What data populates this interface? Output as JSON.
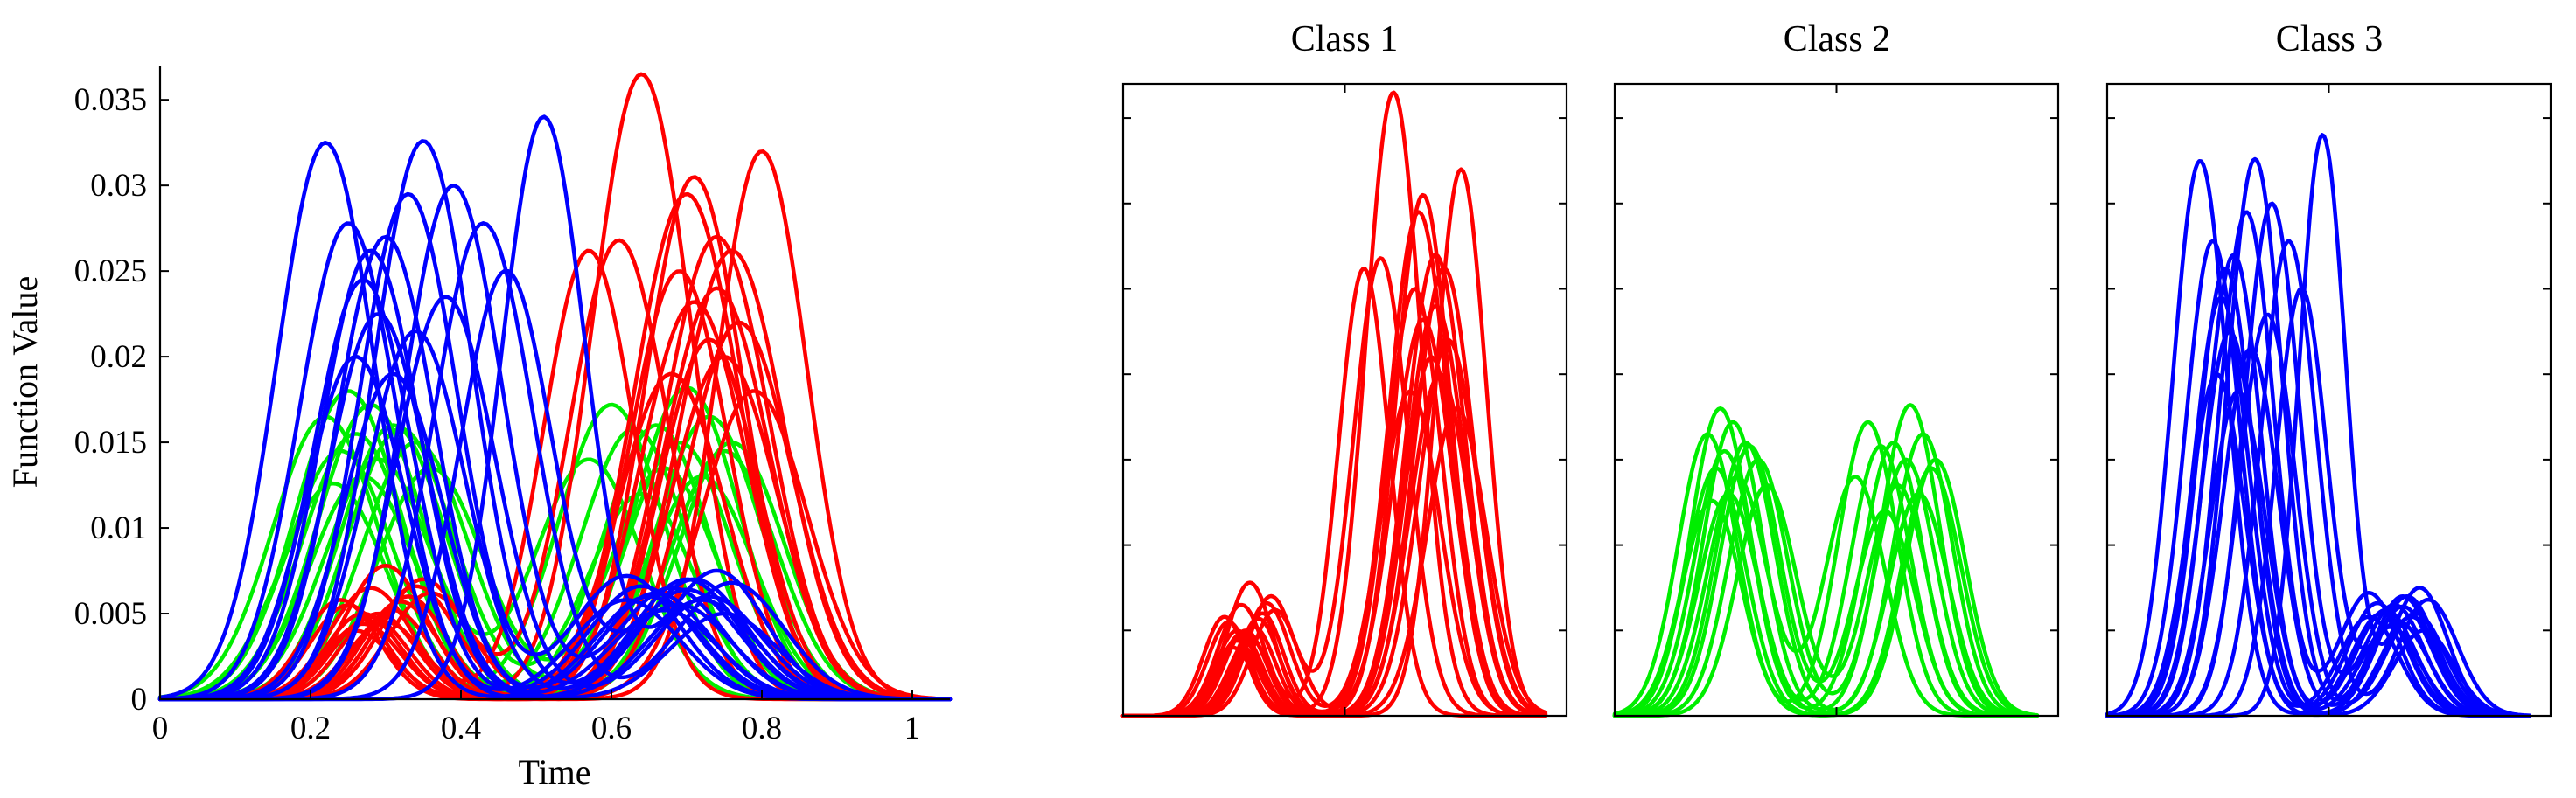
{
  "chart_data": [
    {
      "type": "line",
      "panel": "combined",
      "title": "",
      "xlabel": "Time",
      "ylabel": "Function Value",
      "xlim": [
        0,
        1.05
      ],
      "ylim": [
        0,
        0.037
      ],
      "x_ticks": [
        "0",
        "0.2",
        "0.4",
        "0.6",
        "0.8",
        "1"
      ],
      "x_tick_values": [
        0,
        0.2,
        0.4,
        0.6,
        0.8,
        1.0
      ],
      "y_ticks": [
        "0",
        "0.005",
        "0.01",
        "0.015",
        "0.02",
        "0.025",
        "0.03",
        "0.035"
      ],
      "y_tick_values": [
        0,
        0.005,
        0.01,
        0.015,
        0.02,
        0.025,
        0.03,
        0.035
      ],
      "grid": false,
      "legend": "none",
      "series_groups": [
        "Class 2",
        "Class 1",
        "Class 3"
      ]
    },
    {
      "type": "line",
      "panel": "class1",
      "title": "Class 1",
      "xlim": [
        0,
        1.05
      ],
      "ylim": [
        0,
        0.037
      ],
      "color": "#ff0000",
      "description_peaks": "small first bump near 0.3 (~0.004-0.008), tall second peak 0.55-0.8 (~0.018-0.037)",
      "series": [
        {
          "a1": 0.0065,
          "m1": 0.28,
          "s1": 0.055,
          "a2": 0.0365,
          "m2": 0.64,
          "s2": 0.065
        },
        {
          "a1": 0.0078,
          "m1": 0.3,
          "s1": 0.055,
          "a2": 0.032,
          "m2": 0.8,
          "s2": 0.06
        },
        {
          "a1": 0.0055,
          "m1": 0.25,
          "s1": 0.05,
          "a2": 0.0305,
          "m2": 0.71,
          "s2": 0.065
        },
        {
          "a1": 0.006,
          "m1": 0.33,
          "s1": 0.05,
          "a2": 0.0295,
          "m2": 0.7,
          "s2": 0.07
        },
        {
          "a1": 0.005,
          "m1": 0.27,
          "s1": 0.05,
          "a2": 0.027,
          "m2": 0.74,
          "s2": 0.07
        },
        {
          "a1": 0.007,
          "m1": 0.35,
          "s1": 0.055,
          "a2": 0.0268,
          "m2": 0.61,
          "s2": 0.065
        },
        {
          "a1": 0.0045,
          "m1": 0.3,
          "s1": 0.05,
          "a2": 0.0262,
          "m2": 0.57,
          "s2": 0.06
        },
        {
          "a1": 0.0058,
          "m1": 0.24,
          "s1": 0.05,
          "a2": 0.0262,
          "m2": 0.76,
          "s2": 0.07
        },
        {
          "a1": 0.0052,
          "m1": 0.31,
          "s1": 0.05,
          "a2": 0.025,
          "m2": 0.69,
          "s2": 0.065
        },
        {
          "a1": 0.0048,
          "m1": 0.28,
          "s1": 0.05,
          "a2": 0.024,
          "m2": 0.74,
          "s2": 0.07
        },
        {
          "a1": 0.0062,
          "m1": 0.36,
          "s1": 0.055,
          "a2": 0.0232,
          "m2": 0.71,
          "s2": 0.07
        },
        {
          "a1": 0.004,
          "m1": 0.26,
          "s1": 0.05,
          "a2": 0.022,
          "m2": 0.77,
          "s2": 0.07
        },
        {
          "a1": 0.0057,
          "m1": 0.32,
          "s1": 0.05,
          "a2": 0.021,
          "m2": 0.73,
          "s2": 0.065
        },
        {
          "a1": 0.005,
          "m1": 0.29,
          "s1": 0.05,
          "a2": 0.02,
          "m2": 0.75,
          "s2": 0.07
        },
        {
          "a1": 0.0066,
          "m1": 0.34,
          "s1": 0.055,
          "a2": 0.019,
          "m2": 0.68,
          "s2": 0.07
        },
        {
          "a1": 0.0044,
          "m1": 0.27,
          "s1": 0.05,
          "a2": 0.018,
          "m2": 0.79,
          "s2": 0.07
        }
      ]
    },
    {
      "type": "line",
      "panel": "class2",
      "title": "Class 2",
      "xlim": [
        0,
        1.05
      ],
      "ylim": [
        0,
        0.037
      ],
      "color": "#00ee00",
      "description_peaks": "two comparable bumps near 0.25-0.35 and 0.6-0.75 (~0.013-0.018)",
      "series": [
        {
          "a1": 0.018,
          "m1": 0.25,
          "s1": 0.07,
          "a2": 0.016,
          "m2": 0.66,
          "s2": 0.07
        },
        {
          "a1": 0.0172,
          "m1": 0.28,
          "s1": 0.07,
          "a2": 0.0182,
          "m2": 0.7,
          "s2": 0.07
        },
        {
          "a1": 0.0165,
          "m1": 0.22,
          "s1": 0.07,
          "a2": 0.0172,
          "m2": 0.6,
          "s2": 0.07
        },
        {
          "a1": 0.016,
          "m1": 0.31,
          "s1": 0.07,
          "a2": 0.0165,
          "m2": 0.73,
          "s2": 0.07
        },
        {
          "a1": 0.0155,
          "m1": 0.26,
          "s1": 0.07,
          "a2": 0.0158,
          "m2": 0.63,
          "s2": 0.07
        },
        {
          "a1": 0.015,
          "m1": 0.34,
          "s1": 0.07,
          "a2": 0.015,
          "m2": 0.69,
          "s2": 0.07
        },
        {
          "a1": 0.0145,
          "m1": 0.24,
          "s1": 0.07,
          "a2": 0.0145,
          "m2": 0.75,
          "s2": 0.07
        },
        {
          "a1": 0.014,
          "m1": 0.29,
          "s1": 0.07,
          "a2": 0.014,
          "m2": 0.57,
          "s2": 0.07
        },
        {
          "a1": 0.0135,
          "m1": 0.36,
          "s1": 0.07,
          "a2": 0.0135,
          "m2": 0.67,
          "s2": 0.07
        },
        {
          "a1": 0.013,
          "m1": 0.27,
          "s1": 0.07,
          "a2": 0.013,
          "m2": 0.72,
          "s2": 0.07
        },
        {
          "a1": 0.0158,
          "m1": 0.32,
          "s1": 0.07,
          "a2": 0.012,
          "m2": 0.64,
          "s2": 0.07
        },
        {
          "a1": 0.0126,
          "m1": 0.23,
          "s1": 0.07,
          "a2": 0.015,
          "m2": 0.76,
          "s2": 0.07
        }
      ]
    },
    {
      "type": "line",
      "panel": "class3",
      "title": "Class 3",
      "xlim": [
        0,
        1.05
      ],
      "ylim": [
        0,
        0.037
      ],
      "color": "#0000ff",
      "description_peaks": "tall first peak 0.2-0.5 (~0.018-0.034), small second bump near 0.7 (~0.004-0.008)",
      "series": [
        {
          "a1": 0.0325,
          "m1": 0.22,
          "s1": 0.065,
          "a2": 0.006,
          "m2": 0.65,
          "s2": 0.07
        },
        {
          "a1": 0.0326,
          "m1": 0.35,
          "s1": 0.065,
          "a2": 0.007,
          "m2": 0.7,
          "s2": 0.07
        },
        {
          "a1": 0.034,
          "m1": 0.51,
          "s1": 0.055,
          "a2": 0.0075,
          "m2": 0.74,
          "s2": 0.065
        },
        {
          "a1": 0.03,
          "m1": 0.39,
          "s1": 0.065,
          "a2": 0.0065,
          "m2": 0.68,
          "s2": 0.07
        },
        {
          "a1": 0.0295,
          "m1": 0.33,
          "s1": 0.065,
          "a2": 0.0072,
          "m2": 0.62,
          "s2": 0.07
        },
        {
          "a1": 0.0278,
          "m1": 0.25,
          "s1": 0.065,
          "a2": 0.0058,
          "m2": 0.72,
          "s2": 0.07
        },
        {
          "a1": 0.0278,
          "m1": 0.43,
          "s1": 0.065,
          "a2": 0.0068,
          "m2": 0.76,
          "s2": 0.07
        },
        {
          "a1": 0.027,
          "m1": 0.3,
          "s1": 0.065,
          "a2": 0.0062,
          "m2": 0.66,
          "s2": 0.07
        },
        {
          "a1": 0.0262,
          "m1": 0.28,
          "s1": 0.065,
          "a2": 0.007,
          "m2": 0.71,
          "s2": 0.07
        },
        {
          "a1": 0.025,
          "m1": 0.46,
          "s1": 0.06,
          "a2": 0.0055,
          "m2": 0.69,
          "s2": 0.07
        },
        {
          "a1": 0.0245,
          "m1": 0.27,
          "s1": 0.065,
          "a2": 0.0066,
          "m2": 0.64,
          "s2": 0.07
        },
        {
          "a1": 0.0235,
          "m1": 0.38,
          "s1": 0.065,
          "a2": 0.006,
          "m2": 0.73,
          "s2": 0.07
        },
        {
          "a1": 0.0225,
          "m1": 0.29,
          "s1": 0.065,
          "a2": 0.0052,
          "m2": 0.67,
          "s2": 0.07
        },
        {
          "a1": 0.0215,
          "m1": 0.34,
          "s1": 0.065,
          "a2": 0.0064,
          "m2": 0.7,
          "s2": 0.07
        },
        {
          "a1": 0.02,
          "m1": 0.26,
          "s1": 0.065,
          "a2": 0.0058,
          "m2": 0.62,
          "s2": 0.07
        },
        {
          "a1": 0.019,
          "m1": 0.31,
          "s1": 0.065,
          "a2": 0.005,
          "m2": 0.75,
          "s2": 0.07
        }
      ]
    }
  ]
}
